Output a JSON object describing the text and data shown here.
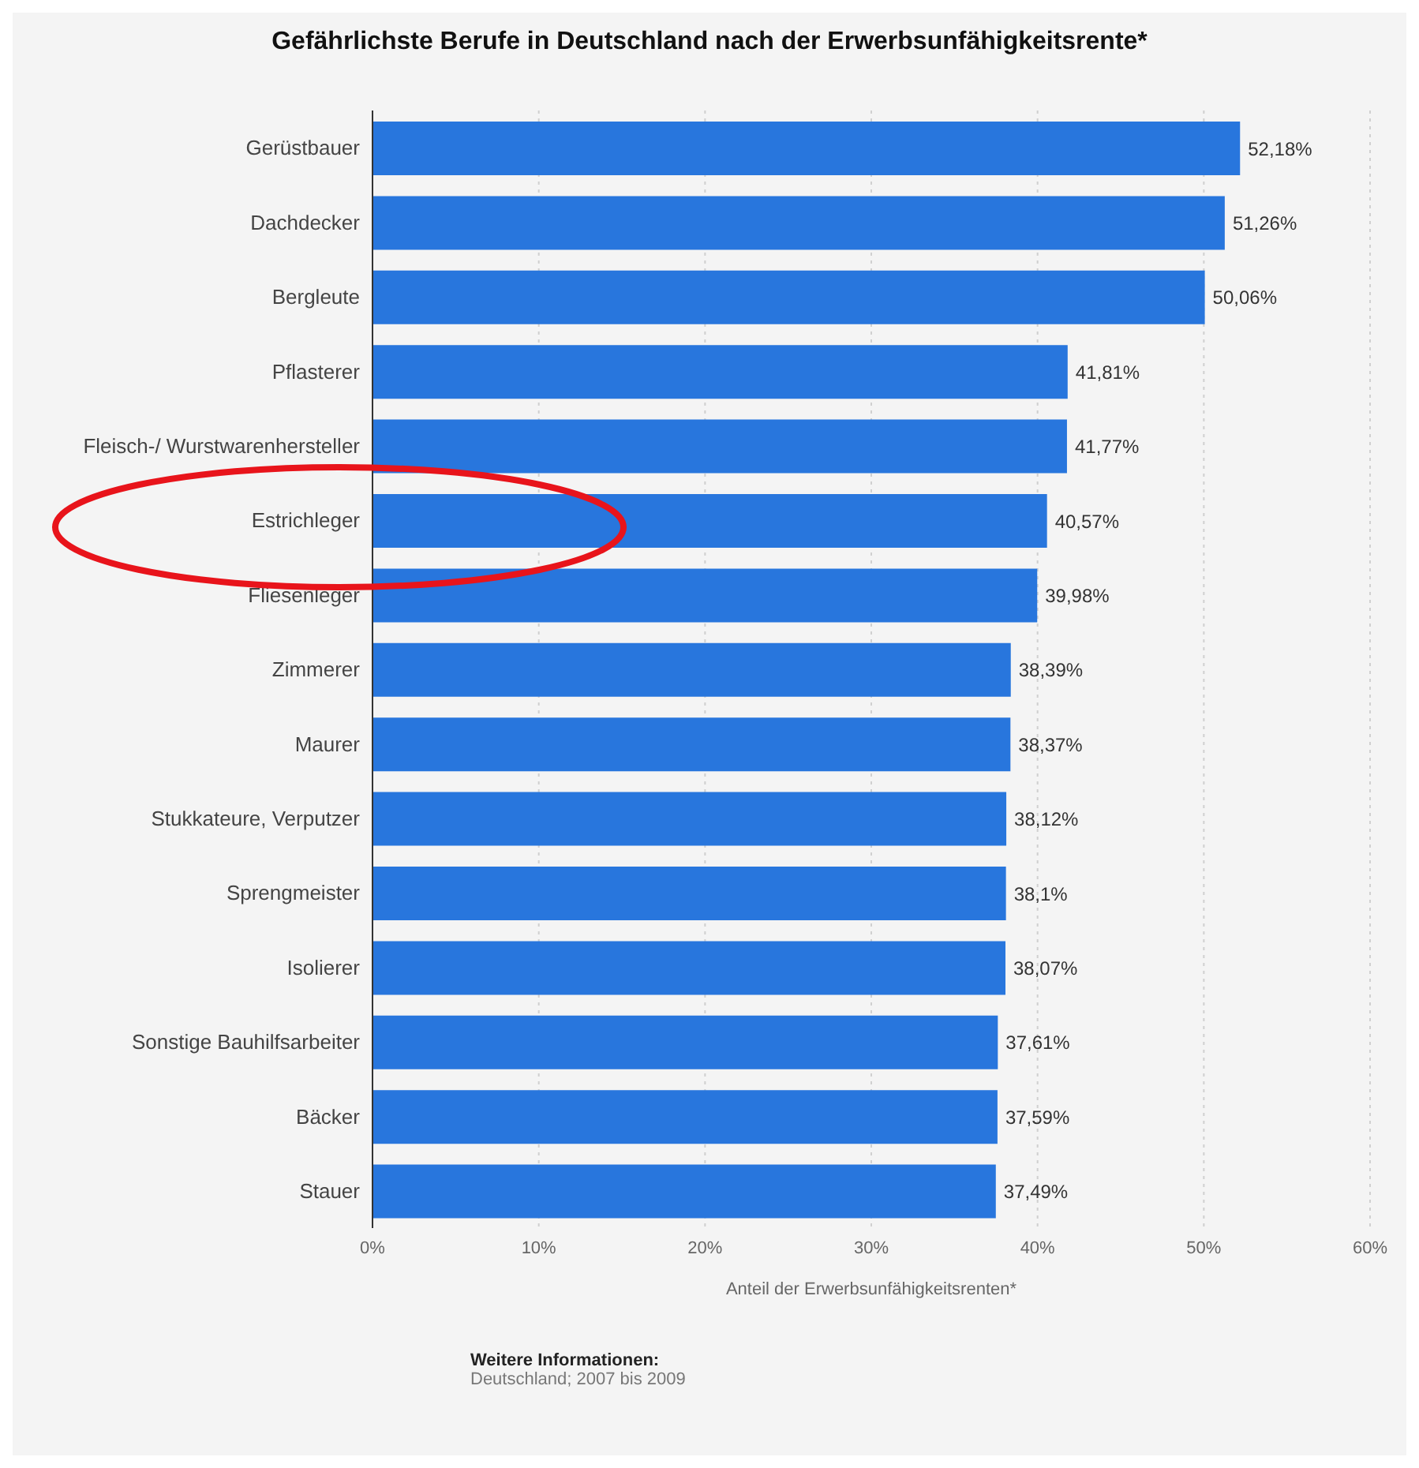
{
  "chart_data": {
    "type": "bar",
    "orientation": "horizontal",
    "title": "Gefährlichste Berufe in Deutschland nach der Erwerbsunfähigkeitsrente*",
    "xlabel": "Anteil der Erwerbsunfähigkeitsrenten*",
    "categories": [
      "Gerüstbauer",
      "Dachdecker",
      "Bergleute",
      "Pflasterer",
      "Fleisch-/ Wurstwarenhersteller",
      "Estrichleger",
      "Fliesenleger",
      "Zimmerer",
      "Maurer",
      "Stukkateure, Verputzer",
      "Sprengmeister",
      "Isolierer",
      "Sonstige Bauhilfsarbeiter",
      "Bäcker",
      "Stauer"
    ],
    "values": [
      52.18,
      51.26,
      50.06,
      41.81,
      41.77,
      40.57,
      39.98,
      38.39,
      38.37,
      38.12,
      38.1,
      38.07,
      37.61,
      37.59,
      37.49
    ],
    "value_labels": [
      "52,18%",
      "51,26%",
      "50,06%",
      "41,81%",
      "41,77%",
      "40,57%",
      "39,98%",
      "38,39%",
      "38,37%",
      "38,12%",
      "38,1%",
      "38,07%",
      "37,61%",
      "37,59%",
      "37,49%"
    ],
    "color": "#2876dd",
    "xlim": [
      0,
      60
    ],
    "xticks": [
      {
        "value": 0,
        "label": "0%"
      },
      {
        "value": 10,
        "label": "10%"
      },
      {
        "value": 20,
        "label": "20%"
      },
      {
        "value": 30,
        "label": "30%"
      },
      {
        "value": 40,
        "label": "40%"
      },
      {
        "value": 50,
        "label": "50%"
      },
      {
        "value": 60,
        "label": "60%"
      }
    ],
    "grid": "x",
    "annotations": [
      "Weitere Informationen:",
      "Deutschland; 2007 bis 2009"
    ]
  }
}
